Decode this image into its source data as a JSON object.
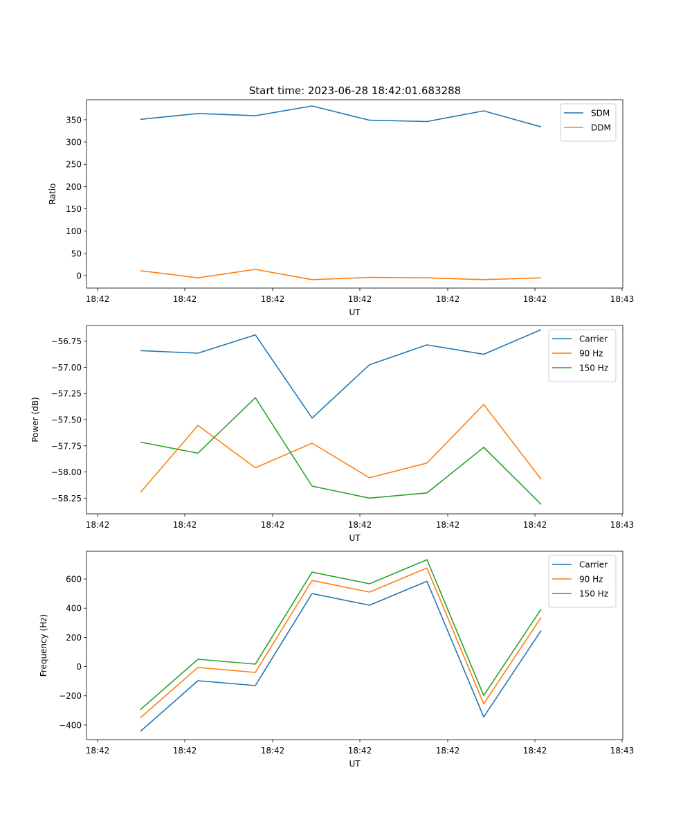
{
  "figure": {
    "title": "Start time: 2023-06-28 18:42:01.683288"
  },
  "chart_data": [
    {
      "type": "line",
      "title": "Start time: 2023-06-28 18:42:01.683288",
      "xlabel": "UT",
      "ylabel": "Ratio",
      "x_tick_labels": [
        "18:42",
        "18:42",
        "18:42",
        "18:42",
        "18:42",
        "18:42",
        "18:43"
      ],
      "y_ticks": [
        0,
        50,
        100,
        150,
        200,
        250,
        300,
        350
      ],
      "ylim": [
        -28,
        395
      ],
      "grid": false,
      "legend": "top-right",
      "series": [
        {
          "name": "SDM",
          "color": "#1f77b4",
          "values": [
            351,
            364,
            359,
            381,
            349,
            346,
            370,
            334
          ]
        },
        {
          "name": "DDM",
          "color": "#ff7f0e",
          "values": [
            11,
            -5,
            14,
            -9,
            -4,
            -5,
            -9,
            -5
          ]
        }
      ]
    },
    {
      "type": "line",
      "xlabel": "UT",
      "ylabel": "Power (dB)",
      "x_tick_labels": [
        "18:42",
        "18:42",
        "18:42",
        "18:42",
        "18:42",
        "18:42",
        "18:43"
      ],
      "y_ticks": [
        -56.75,
        -57.0,
        -57.25,
        -57.5,
        -57.75,
        -58.0,
        -58.25
      ],
      "y_tick_labels": [
        "−56.75",
        "−57.00",
        "−57.25",
        "−57.50",
        "−57.75",
        "−58.00",
        "−58.25"
      ],
      "ylim": [
        -58.4,
        -56.6
      ],
      "grid": false,
      "legend": "top-right",
      "series": [
        {
          "name": "Carrier",
          "color": "#1f77b4",
          "values": [
            -56.84,
            -56.865,
            -56.69,
            -57.485,
            -56.975,
            -56.785,
            -56.875,
            -56.64
          ]
        },
        {
          "name": "90 Hz",
          "color": "#ff7f0e",
          "values": [
            -58.195,
            -57.555,
            -57.96,
            -57.725,
            -58.055,
            -57.915,
            -57.355,
            -58.07
          ]
        },
        {
          "name": "150 Hz",
          "color": "#2ca02c",
          "values": [
            -57.715,
            -57.82,
            -57.29,
            -58.135,
            -58.25,
            -58.2,
            -57.765,
            -58.31
          ]
        }
      ]
    },
    {
      "type": "line",
      "xlabel": "UT",
      "ylabel": "Frequency (Hz)",
      "x_tick_labels": [
        "18:42",
        "18:42",
        "18:42",
        "18:42",
        "18:42",
        "18:42",
        "18:43"
      ],
      "y_ticks": [
        -400,
        -200,
        0,
        200,
        400,
        600
      ],
      "y_tick_labels": [
        "−400",
        "−200",
        "0",
        "200",
        "400",
        "600"
      ],
      "ylim": [
        -500,
        790
      ],
      "grid": false,
      "legend": "top-right",
      "series": [
        {
          "name": "Carrier",
          "color": "#1f77b4",
          "values": [
            -443,
            -97,
            -130,
            500,
            420,
            584,
            -345,
            247
          ]
        },
        {
          "name": "90 Hz",
          "color": "#ff7f0e",
          "values": [
            -350,
            -6,
            -40,
            590,
            510,
            675,
            -255,
            337
          ]
        },
        {
          "name": "150 Hz",
          "color": "#2ca02c",
          "values": [
            -294,
            50,
            17,
            647,
            567,
            732,
            -198,
            394
          ]
        }
      ]
    }
  ]
}
